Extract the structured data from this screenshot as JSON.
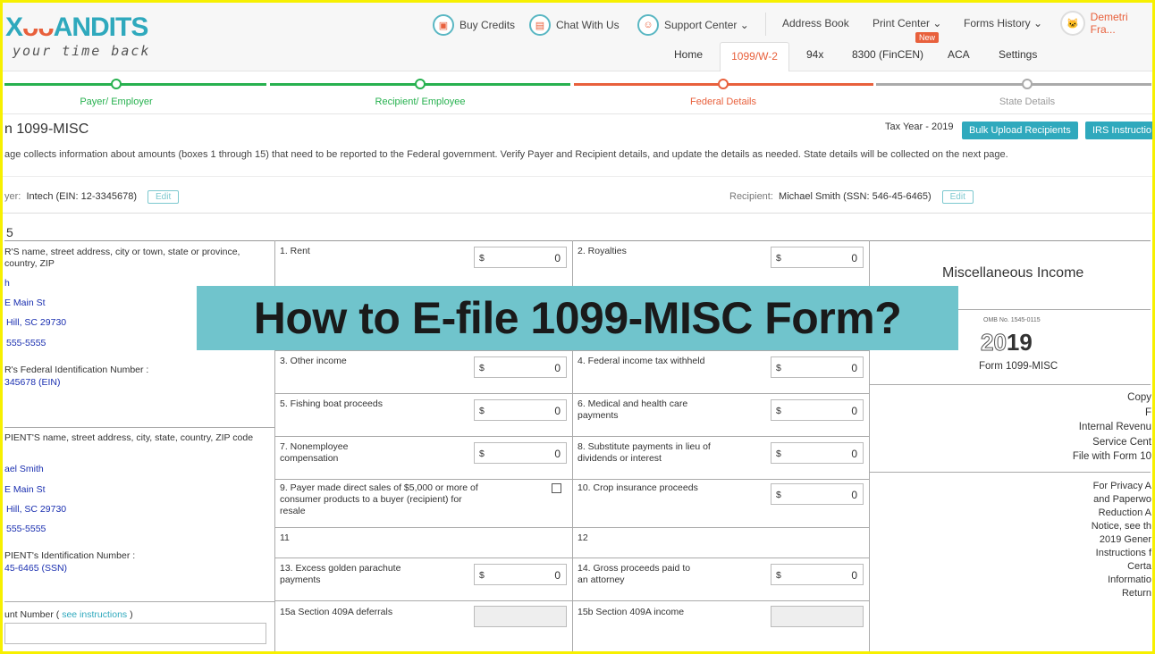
{
  "logo": {
    "text_left": "X",
    "text_owl": "ᴗᴗ",
    "text_right": "ANDITS",
    "tagline": "your time back"
  },
  "topnav": [
    {
      "label": "Buy Credits",
      "icon": "wallet-icon"
    },
    {
      "label": "Chat With Us",
      "icon": "chat-icon"
    },
    {
      "label": "Support Center ⌄",
      "icon": "support-icon"
    },
    {
      "label": "Address Book"
    },
    {
      "label": "Print Center ⌄"
    },
    {
      "label": "Forms History ⌄"
    }
  ],
  "user": {
    "name": "Demetri Fra..."
  },
  "tabs": [
    "Home",
    "1099/W-2",
    "94x",
    "8300 (FinCEN)",
    "ACA",
    "Settings"
  ],
  "new_badge": "New",
  "progress": {
    "steps": [
      {
        "label": "Payer/ Employer",
        "status": "done",
        "color": "#27b14f"
      },
      {
        "label": "Recipient/ Employee",
        "status": "done",
        "color": "#27b14f"
      },
      {
        "label": "Federal Details",
        "status": "current",
        "color": "#e8603c"
      },
      {
        "label": "State Details",
        "status": "pending",
        "color": "#aaaaaa"
      }
    ]
  },
  "page": {
    "title": "n 1099-MISC",
    "tax_year": "Tax Year - 2019",
    "bulk_upload": "Bulk Upload Recipients",
    "irs_instructions": "IRS Instructio",
    "description": "age collects information about amounts (boxes 1 through 15) that need to be reported to the Federal government. Verify Payer and Recipient details, and update the details as needed. State details will be collected on the next page.",
    "payer_label": "yer:",
    "payer_value": "Intech (EIN: 12-3345678)",
    "recipient_label": "Recipient:",
    "recipient_value": "Michael Smith (SSN: 546-45-6465)",
    "edit": "Edit",
    "section_num": "5"
  },
  "form": {
    "payer": {
      "heading": "R'S name, street address, city or town, state or province, country, ZIP",
      "name": "h",
      "street": "E Main St",
      "city": "Hill, SC 29730",
      "phone": "555-5555",
      "tin_label": "R's Federal Identification Number :",
      "tin": "345678 (EIN)"
    },
    "recipient": {
      "heading": "PIENT'S name, street address, city, state, country, ZIP code",
      "name": "ael Smith",
      "street": "E Main St",
      "city": "Hill, SC 29730",
      "phone": "555-5555",
      "tin_label": "PIENT's Identification Number :",
      "tin": "45-6465 (SSN)"
    },
    "account_label": "unt Number (",
    "account_link": "see instructions",
    "account_close": ")",
    "boxes": [
      {
        "label": "1. Rent",
        "value": "0"
      },
      {
        "label": "2. Royalties",
        "value": "0"
      },
      {
        "label": "3. Other income",
        "value": "0"
      },
      {
        "label": "4. Federal income tax withheld",
        "value": "0"
      },
      {
        "label": "5. Fishing boat proceeds",
        "value": "0"
      },
      {
        "label": "6. Medical and health care payments",
        "value": "0"
      },
      {
        "label": "7. Nonemployee compensation",
        "value": "0"
      },
      {
        "label": "8. Substitute payments in lieu of dividends or interest",
        "value": "0"
      },
      {
        "label": "9. Payer made direct sales of $5,000 or more of consumer products to a buyer (recipient) for resale",
        "checkbox": false
      },
      {
        "label": "10. Crop insurance proceeds",
        "value": "0"
      },
      {
        "label": "11"
      },
      {
        "label": "12"
      },
      {
        "label": "13. Excess golden parachute payments",
        "value": "0"
      },
      {
        "label": "14. Gross proceeds paid to an attorney",
        "value": "0"
      },
      {
        "label": "15a Section 409A deferrals"
      },
      {
        "label": "15b Section 409A income"
      }
    ],
    "currency": "$",
    "right": {
      "title": "Miscellaneous Income",
      "omb": "OMB No. 1545-0115",
      "year_outline": "20",
      "year_bold": "19",
      "form_name": "Form 1099-MISC",
      "copy": [
        "Copy",
        "F",
        "Internal Revenu",
        "Service Cent",
        "File with Form 10"
      ],
      "privacy": [
        "For Privacy A",
        "and Paperwo",
        "Reduction A",
        "Notice, see th",
        "2019 Gener",
        "Instructions f",
        "Certa",
        "Informatio",
        "Return"
      ]
    }
  },
  "overlay": {
    "title": "How to E-file 1099-MISC Form?",
    "color": "#70c4cc"
  }
}
